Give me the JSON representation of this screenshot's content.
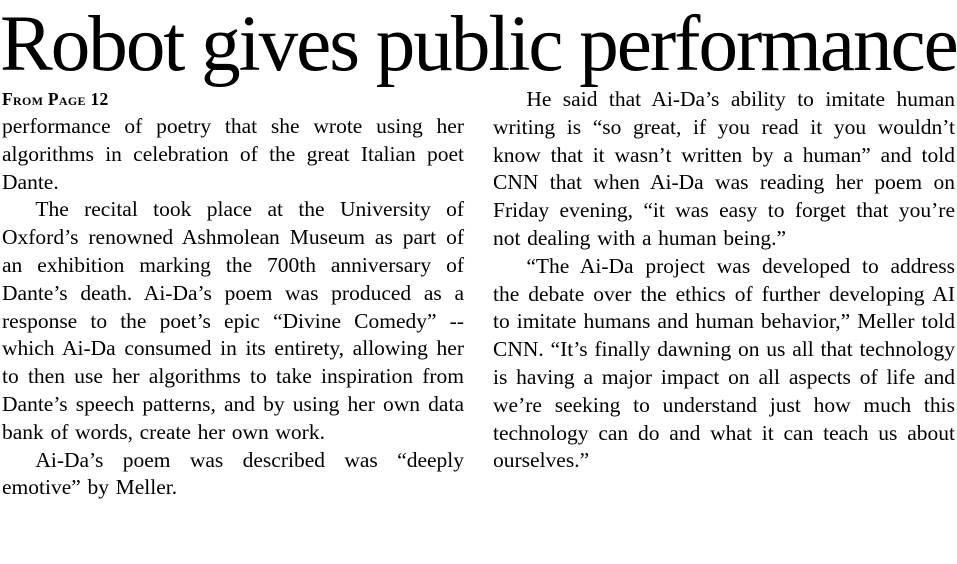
{
  "article": {
    "headline": "Robot gives public performance",
    "kicker": "From Page 12",
    "columns": [
      {
        "paragraphs": [
          {
            "text": "performance of poetry that she wrote using her algorithms in celebration of the great Italian poet Dante."
          },
          {
            "text": "The recital took place at the University of Oxford’s renowned Ashmolean Museum as part of an exhibition marking the 700th anniversary of Dante’s death. Ai-Da’s poem was produced as a response to the poet’s epic “Divine Comedy” -- which Ai-Da consumed in its entirety, allowing her to then use her algorithms to take inspiration from Dante’s speech patterns, and by using her own data bank of words, create her own work."
          },
          {
            "text": "Ai-Da’s poem was described was “deeply emotive” by Meller."
          }
        ]
      },
      {
        "paragraphs": [
          {
            "text": "He said that Ai-Da’s ability to imitate human writing is “so great, if you read it you wouldn’t know that it wasn’t written by a human” and told CNN that when Ai-Da was reading her poem on Friday evening, “it was easy to forget that you’re not dealing with a human being.”"
          },
          {
            "text": "“The Ai-Da project was developed to address the debate over the ethics of further developing AI to imitate humans and human behavior,” Meller told CNN. “It’s finally dawning on us all that technology is having a major impact on all aspects of life and we’re seeking to understand just how much this technology can do and what it can teach us about ourselves.”"
          }
        ]
      }
    ]
  }
}
